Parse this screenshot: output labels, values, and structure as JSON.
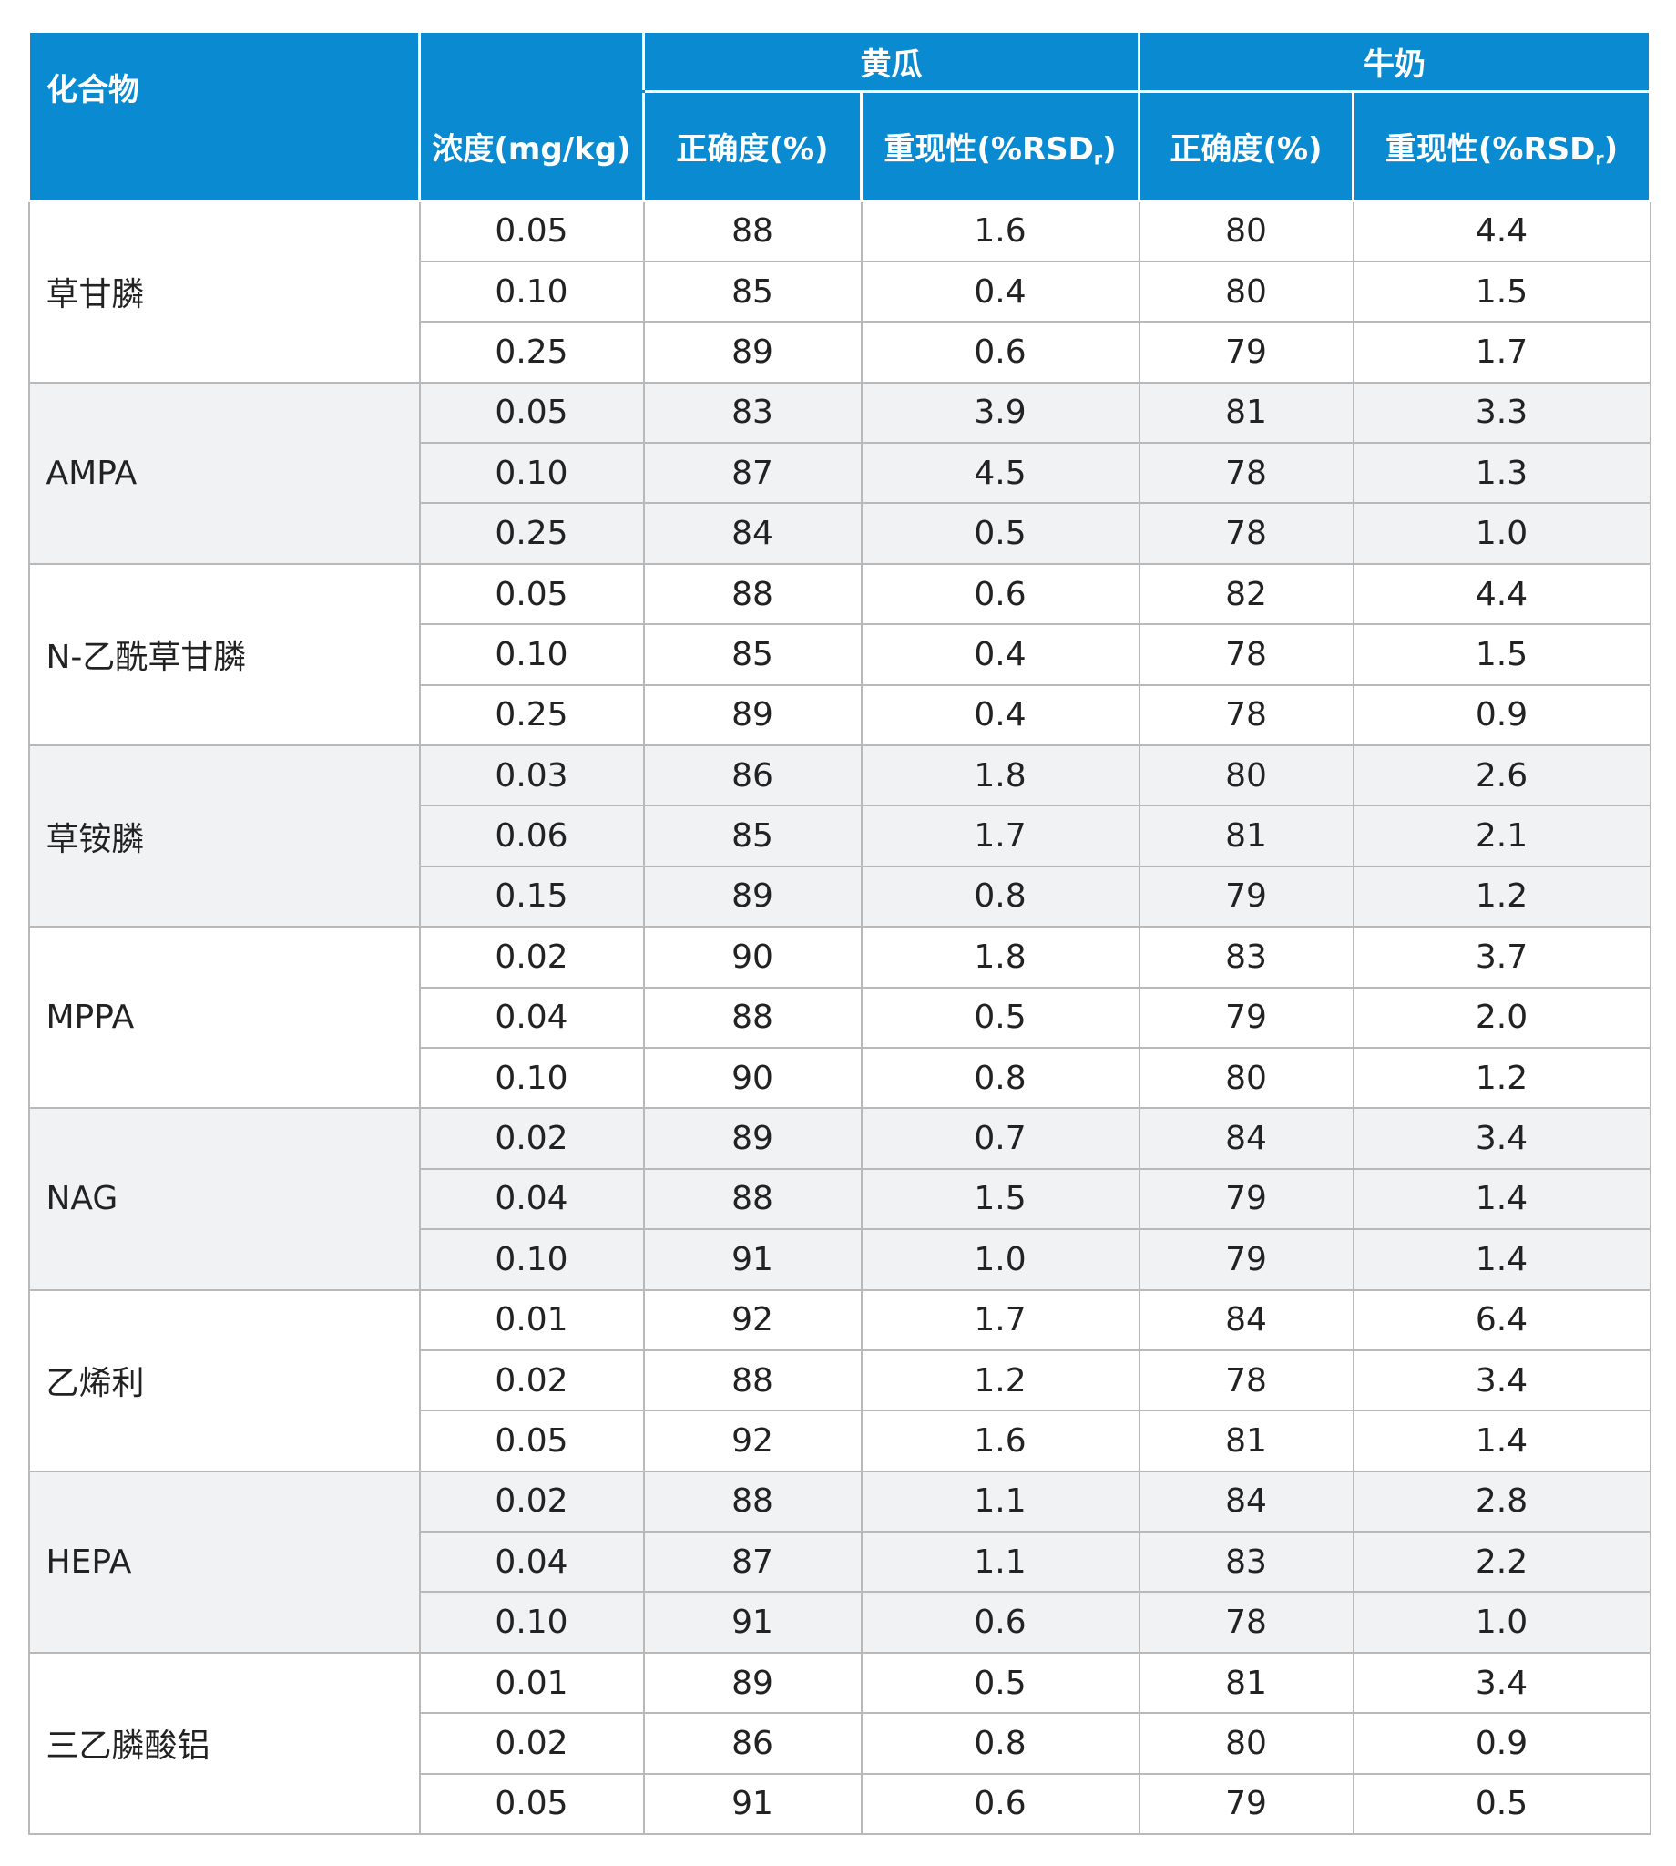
{
  "header": {
    "compound": "化合物",
    "cucumber": "黄瓜",
    "milk": "牛奶",
    "concentration": "浓度(mg/kg)",
    "accuracy": "正确度(%)",
    "repeatability_prefix": "重现性(%RSD",
    "repeatability_sub": "r",
    "repeatability_suffix": ")"
  },
  "rows": [
    {
      "compound": "草甘膦",
      "levels": [
        {
          "conc": "0.05",
          "cu_acc": "88",
          "cu_rsd": "1.6",
          "mk_acc": "80",
          "mk_rsd": "4.4"
        },
        {
          "conc": "0.10",
          "cu_acc": "85",
          "cu_rsd": "0.4",
          "mk_acc": "80",
          "mk_rsd": "1.5"
        },
        {
          "conc": "0.25",
          "cu_acc": "89",
          "cu_rsd": "0.6",
          "mk_acc": "79",
          "mk_rsd": "1.7"
        }
      ]
    },
    {
      "compound": "AMPA",
      "levels": [
        {
          "conc": "0.05",
          "cu_acc": "83",
          "cu_rsd": "3.9",
          "mk_acc": "81",
          "mk_rsd": "3.3"
        },
        {
          "conc": "0.10",
          "cu_acc": "87",
          "cu_rsd": "4.5",
          "mk_acc": "78",
          "mk_rsd": "1.3"
        },
        {
          "conc": "0.25",
          "cu_acc": "84",
          "cu_rsd": "0.5",
          "mk_acc": "78",
          "mk_rsd": "1.0"
        }
      ]
    },
    {
      "compound": "N-乙酰草甘膦",
      "levels": [
        {
          "conc": "0.05",
          "cu_acc": "88",
          "cu_rsd": "0.6",
          "mk_acc": "82",
          "mk_rsd": "4.4"
        },
        {
          "conc": "0.10",
          "cu_acc": "85",
          "cu_rsd": "0.4",
          "mk_acc": "78",
          "mk_rsd": "1.5"
        },
        {
          "conc": "0.25",
          "cu_acc": "89",
          "cu_rsd": "0.4",
          "mk_acc": "78",
          "mk_rsd": "0.9"
        }
      ]
    },
    {
      "compound": "草铵膦",
      "levels": [
        {
          "conc": "0.03",
          "cu_acc": "86",
          "cu_rsd": "1.8",
          "mk_acc": "80",
          "mk_rsd": "2.6"
        },
        {
          "conc": "0.06",
          "cu_acc": "85",
          "cu_rsd": "1.7",
          "mk_acc": "81",
          "mk_rsd": "2.1"
        },
        {
          "conc": "0.15",
          "cu_acc": "89",
          "cu_rsd": "0.8",
          "mk_acc": "79",
          "mk_rsd": "1.2"
        }
      ]
    },
    {
      "compound": "MPPA",
      "levels": [
        {
          "conc": "0.02",
          "cu_acc": "90",
          "cu_rsd": "1.8",
          "mk_acc": "83",
          "mk_rsd": "3.7"
        },
        {
          "conc": "0.04",
          "cu_acc": "88",
          "cu_rsd": "0.5",
          "mk_acc": "79",
          "mk_rsd": "2.0"
        },
        {
          "conc": "0.10",
          "cu_acc": "90",
          "cu_rsd": "0.8",
          "mk_acc": "80",
          "mk_rsd": "1.2"
        }
      ]
    },
    {
      "compound": "NAG",
      "levels": [
        {
          "conc": "0.02",
          "cu_acc": "89",
          "cu_rsd": "0.7",
          "mk_acc": "84",
          "mk_rsd": "3.4"
        },
        {
          "conc": "0.04",
          "cu_acc": "88",
          "cu_rsd": "1.5",
          "mk_acc": "79",
          "mk_rsd": "1.4"
        },
        {
          "conc": "0.10",
          "cu_acc": "91",
          "cu_rsd": "1.0",
          "mk_acc": "79",
          "mk_rsd": "1.4"
        }
      ]
    },
    {
      "compound": "乙烯利",
      "levels": [
        {
          "conc": "0.01",
          "cu_acc": "92",
          "cu_rsd": "1.7",
          "mk_acc": "84",
          "mk_rsd": "6.4"
        },
        {
          "conc": "0.02",
          "cu_acc": "88",
          "cu_rsd": "1.2",
          "mk_acc": "78",
          "mk_rsd": "3.4"
        },
        {
          "conc": "0.05",
          "cu_acc": "92",
          "cu_rsd": "1.6",
          "mk_acc": "81",
          "mk_rsd": "1.4"
        }
      ]
    },
    {
      "compound": "HEPA",
      "levels": [
        {
          "conc": "0.02",
          "cu_acc": "88",
          "cu_rsd": "1.1",
          "mk_acc": "84",
          "mk_rsd": "2.8"
        },
        {
          "conc": "0.04",
          "cu_acc": "87",
          "cu_rsd": "1.1",
          "mk_acc": "83",
          "mk_rsd": "2.2"
        },
        {
          "conc": "0.10",
          "cu_acc": "91",
          "cu_rsd": "0.6",
          "mk_acc": "78",
          "mk_rsd": "1.0"
        }
      ]
    },
    {
      "compound": "三乙膦酸铝",
      "levels": [
        {
          "conc": "0.01",
          "cu_acc": "89",
          "cu_rsd": "0.5",
          "mk_acc": "81",
          "mk_rsd": "3.4"
        },
        {
          "conc": "0.02",
          "cu_acc": "86",
          "cu_rsd": "0.8",
          "mk_acc": "80",
          "mk_rsd": "0.9"
        },
        {
          "conc": "0.05",
          "cu_acc": "91",
          "cu_rsd": "0.6",
          "mk_acc": "79",
          "mk_rsd": "0.5"
        }
      ]
    }
  ]
}
